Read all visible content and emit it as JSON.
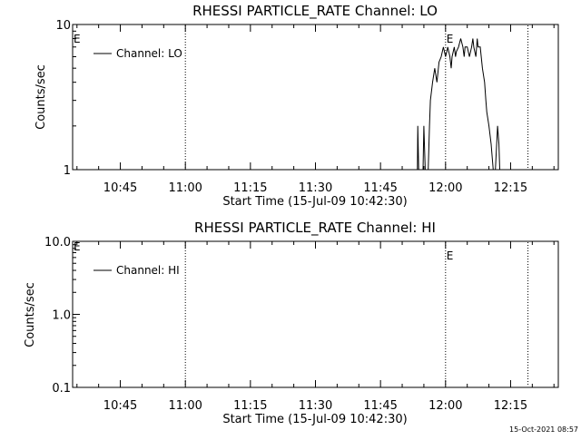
{
  "footer_timestamp": "15-Oct-2021 08:57",
  "chart_data": [
    {
      "type": "line",
      "title": "RHESSI PARTICLE_RATE Channel: LO",
      "xlabel": "Start Time (15-Jul-09 10:42:30)",
      "ylabel": "Counts/sec",
      "yscale": "log",
      "ylim": [
        1,
        10
      ],
      "yticks": [
        1,
        10
      ],
      "ytick_labels": [
        "1",
        "10"
      ],
      "xlim_minutes": [
        -11,
        101
      ],
      "xticks_minutes": [
        0,
        15,
        30,
        45,
        60,
        75,
        90
      ],
      "xtick_labels": [
        "10:45",
        "11:00",
        "11:15",
        "11:30",
        "11:45",
        "12:00",
        "12:15"
      ],
      "grid": false,
      "legend": {
        "label": "Channel: LO",
        "placement": "top-left"
      },
      "event_lines": [
        {
          "t": 15,
          "label": ""
        },
        {
          "t": 75,
          "label": "E"
        },
        {
          "t": 94,
          "label": ""
        }
      ],
      "start_marker": "E",
      "x": [
        68.5,
        68.6,
        68.8,
        69.0,
        69.8,
        70.0,
        70.3,
        70.5,
        71.0,
        71.3,
        71.5,
        72.0,
        72.5,
        73.0,
        73.5,
        74.0,
        74.5,
        75.0,
        75.3,
        75.5,
        76.0,
        76.3,
        76.5,
        77.0,
        77.3,
        77.5,
        78.0,
        78.5,
        79.0,
        79.3,
        79.5,
        80.0,
        80.5,
        81.0,
        81.3,
        81.5,
        82.0,
        82.3,
        82.5,
        83.0,
        83.5,
        84.0,
        84.3,
        84.5,
        85.0,
        85.5,
        86.0,
        86.5,
        87.0,
        87.3,
        87.5,
        88.0
      ],
      "y": [
        1.0,
        2.0,
        1.0,
        1.0,
        1.0,
        2.0,
        1.0,
        1.0,
        1.0,
        2.0,
        3.0,
        4.0,
        5.0,
        4.0,
        5.5,
        6.0,
        7.0,
        6.0,
        6.5,
        7.0,
        6.0,
        5.0,
        6.0,
        7.0,
        6.0,
        6.5,
        7.0,
        8.0,
        7.0,
        6.0,
        7.0,
        7.0,
        6.0,
        7.0,
        8.0,
        7.0,
        6.0,
        8.0,
        7.0,
        7.0,
        5.0,
        4.0,
        3.0,
        2.5,
        2.0,
        1.5,
        1.0,
        1.0,
        2.0,
        1.5,
        1.0,
        1.0
      ]
    },
    {
      "type": "line",
      "title": "RHESSI PARTICLE_RATE Channel: HI",
      "xlabel": "Start Time (15-Jul-09 10:42:30)",
      "ylabel": "Counts/sec",
      "yscale": "log",
      "ylim": [
        0.1,
        10
      ],
      "yticks": [
        0.1,
        1,
        10
      ],
      "ytick_labels": [
        "0.1",
        "1.0",
        "10.0"
      ],
      "xlim_minutes": [
        -11,
        101
      ],
      "xticks_minutes": [
        0,
        15,
        30,
        45,
        60,
        75,
        90
      ],
      "xtick_labels": [
        "10:45",
        "11:00",
        "11:15",
        "11:30",
        "11:45",
        "12:00",
        "12:15"
      ],
      "grid": false,
      "legend": {
        "label": "Channel: HI",
        "placement": "top-left"
      },
      "event_lines": [
        {
          "t": 15,
          "label": ""
        },
        {
          "t": 75,
          "label": "E"
        },
        {
          "t": 94,
          "label": ""
        }
      ],
      "start_marker": "E",
      "x": [],
      "y": []
    }
  ]
}
